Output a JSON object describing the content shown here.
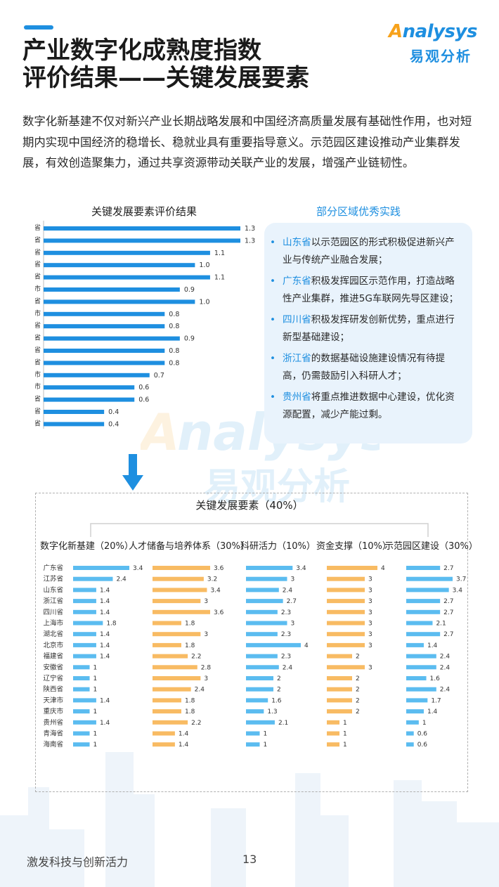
{
  "header": {
    "title_line1": "产业数字化成熟度指数",
    "title_line2": "评价结果——关键发展要素",
    "logo_text": "Analysys",
    "logo_cn": "易观分析"
  },
  "intro": "数字化新基建不仅对新兴产业长期战略发展和中国经济高质量发展有基础性作用，也对短期内实现中国经济的稳增长、稳就业具有重要指导意义。示范园区建设推动产业集群发展，有效创造聚集力，通过共享资源带动关联产业的发展，增强产业链韧性。",
  "right_panel": {
    "title": "部分区域优秀实践",
    "items": [
      {
        "province": "山东省",
        "text": "以示范园区的形式积极促进新兴产业与传统产业融合发展；"
      },
      {
        "province": "广东省",
        "text": "积极发挥园区示范作用，打造战略性产业集群，推进5G车联网先导区建设；"
      },
      {
        "province": "四川省",
        "text": "积极发挥研发创新优势，重点进行新型基础建设；"
      },
      {
        "province": "浙江省",
        "text": "的数据基础设施建设情况有待提高，仍需鼓励引入科研人才；"
      },
      {
        "province": "贵州省",
        "text": "将重点推进数据中心建设，优化资源配置，减少产能过剩。"
      }
    ]
  },
  "bottom_title": "关键发展要素（40%）",
  "colors": {
    "blue": "#1e8fe0",
    "light_blue": "#5bbcf0",
    "orange": "#f8bb63"
  },
  "chart_data": [
    {
      "type": "bar",
      "orientation": "horizontal",
      "title": "关键发展要素评价结果",
      "categories": [
        "广东省",
        "江苏省",
        "山东省",
        "浙江省",
        "四川省",
        "上海市",
        "湖北省",
        "北京市",
        "福建省",
        "安徽省",
        "辽宁省",
        "陕西省",
        "天津市",
        "重庆市",
        "贵州省",
        "青海省",
        "海南省"
      ],
      "values": [
        1.3,
        1.3,
        1.1,
        1.0,
        1.1,
        0.9,
        1.0,
        0.8,
        0.8,
        0.9,
        0.8,
        0.8,
        0.7,
        0.6,
        0.6,
        0.4,
        0.4
      ],
      "labels": [
        "1.3",
        "1.3",
        "1.1",
        "1.0",
        "1.1",
        "0.9",
        "1.0",
        "0.8",
        "0.8",
        "0.9",
        "0.8",
        "0.8",
        "0.7",
        "0.6",
        "0.6",
        "0.4",
        "0.4"
      ],
      "color": "#1e8fe0"
    },
    {
      "type": "bar",
      "orientation": "horizontal",
      "title": "数字化新基建（20%）",
      "categories": [
        "广东省",
        "江苏省",
        "山东省",
        "浙江省",
        "四川省",
        "上海市",
        "湖北省",
        "北京市",
        "福建省",
        "安徽省",
        "辽宁省",
        "陕西省",
        "天津市",
        "重庆市",
        "贵州省",
        "青海省",
        "海南省"
      ],
      "values": [
        3.4,
        2.4,
        1.4,
        1.4,
        1.4,
        1.8,
        1.4,
        1.4,
        1.4,
        1,
        1,
        1,
        1.4,
        1,
        1.4,
        1,
        1
      ],
      "color": "#5bbcf0"
    },
    {
      "type": "bar",
      "orientation": "horizontal",
      "title": "人才储备与培养体系（30%）",
      "values": [
        3.6,
        3.2,
        3.4,
        3,
        3.6,
        1.8,
        3,
        1.8,
        2.2,
        2.8,
        3,
        2.4,
        1.8,
        1.8,
        2.2,
        1.4,
        1.4
      ],
      "color": "#f8bb63"
    },
    {
      "type": "bar",
      "orientation": "horizontal",
      "title": "科研活力（10%）",
      "values": [
        3.4,
        3,
        2.4,
        2.7,
        2.3,
        3,
        2.3,
        4,
        2.3,
        2.4,
        2,
        2,
        1.6,
        1.3,
        2.1,
        1,
        1
      ],
      "color": "#5bbcf0"
    },
    {
      "type": "bar",
      "orientation": "horizontal",
      "title": "资金支撑（10%）",
      "values": [
        4,
        3,
        3,
        3,
        3,
        3,
        3,
        3,
        2,
        3,
        2,
        2,
        2,
        2,
        1,
        1,
        1
      ],
      "color": "#f8bb63"
    },
    {
      "type": "bar",
      "orientation": "horizontal",
      "title": "示范园区建设（30%）",
      "values": [
        2.7,
        3.7,
        3.4,
        2.7,
        2.7,
        2.1,
        2.7,
        1.4,
        2.4,
        2.4,
        1.6,
        2.4,
        1.7,
        1.4,
        1,
        0.6,
        0.6
      ],
      "color": "#5bbcf0"
    }
  ],
  "footer": {
    "text": "激发科技与创新活力",
    "page": "13"
  }
}
